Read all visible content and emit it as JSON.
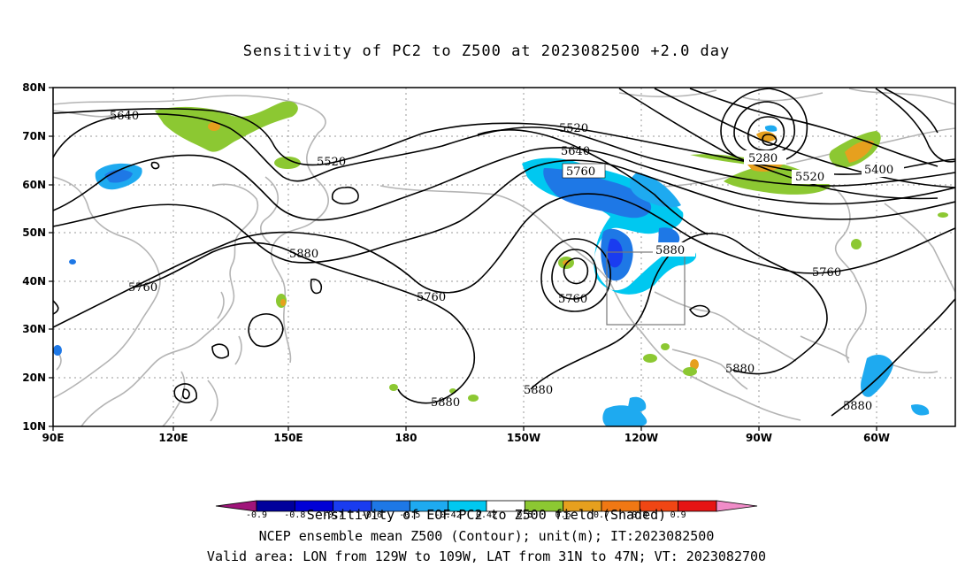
{
  "title": "Sensitivity of PC2 to Z500 at 2023082500 +2.0 day",
  "lat_labels": [
    "80N",
    "70N",
    "60N",
    "50N",
    "40N",
    "30N",
    "20N",
    "10N"
  ],
  "lon_labels": [
    "90E",
    "120E",
    "150E",
    "180",
    "150W",
    "120W",
    "90W",
    "60W"
  ],
  "contour_labels": [
    "5640",
    "5520",
    "5520",
    "5640",
    "5760",
    "5280",
    "5520",
    "5400",
    "5880",
    "5880",
    "5760",
    "5760",
    "5760",
    "5760",
    "5880",
    "5880",
    "5880",
    "5880"
  ],
  "colorbar": {
    "ticks": [
      "-0.9",
      "-0.8",
      "-0.7",
      "-0.6",
      "-0.5",
      "-0.42",
      "0.42",
      "0.5",
      "0.6",
      "0.7",
      "0.8",
      "0.9"
    ],
    "colors": [
      "#a0147a",
      "#00009c",
      "#0000d6",
      "#1a3cf0",
      "#1e78e6",
      "#1eaaf0",
      "#00c8f0",
      "#ffffff",
      "#8cc832",
      "#e6a01e",
      "#f07814",
      "#f04614",
      "#e61414",
      "#f08cc8"
    ]
  },
  "captions": [
    "Sensitivity of EOF PC2 to Z500 field (Shaded)",
    "NCEP ensemble mean Z500 (Contour); unit(m); IT:2023082500",
    "Valid area: LON from 129W to 109W, LAT from 31N to 47N; VT: 2023082700"
  ]
}
